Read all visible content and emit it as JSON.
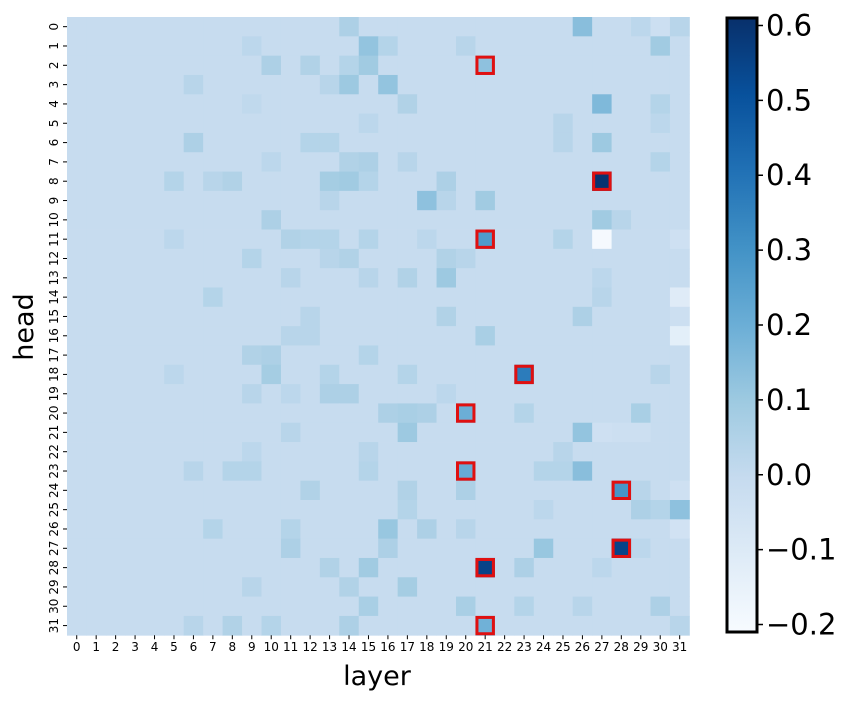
{
  "chart_data": {
    "type": "heatmap",
    "xlabel": "layer",
    "ylabel": "head",
    "x_categories": [
      "0",
      "1",
      "2",
      "3",
      "4",
      "5",
      "6",
      "7",
      "8",
      "9",
      "10",
      "11",
      "12",
      "13",
      "14",
      "15",
      "16",
      "17",
      "18",
      "19",
      "20",
      "21",
      "22",
      "23",
      "24",
      "25",
      "26",
      "27",
      "28",
      "29",
      "30",
      "31"
    ],
    "y_categories": [
      "0",
      "1",
      "2",
      "3",
      "4",
      "5",
      "6",
      "7",
      "8",
      "9",
      "10",
      "11",
      "12",
      "13",
      "14",
      "15",
      "16",
      "17",
      "18",
      "19",
      "20",
      "21",
      "22",
      "23",
      "24",
      "25",
      "26",
      "27",
      "28",
      "29",
      "30",
      "31"
    ],
    "colormap": "Blues",
    "colorbar": {
      "range": [
        -0.21,
        0.61
      ],
      "ticks": [
        -0.2,
        -0.1,
        0.0,
        0.1,
        0.2,
        0.3,
        0.4,
        0.5,
        0.6
      ],
      "tick_labels": [
        "−0.2",
        "−0.1",
        "0.0",
        "0.1",
        "0.2",
        "0.3",
        "0.4",
        "0.5",
        "0.6"
      ]
    },
    "baseline_value": -0.01,
    "cells": [
      {
        "layer": 14,
        "head": 0,
        "value": 0.06
      },
      {
        "layer": 26,
        "head": 0,
        "value": 0.14
      },
      {
        "layer": 29,
        "head": 0,
        "value": 0.02
      },
      {
        "layer": 30,
        "head": 0,
        "value": -0.03
      },
      {
        "layer": 31,
        "head": 0,
        "value": 0.03
      },
      {
        "layer": 9,
        "head": 1,
        "value": 0.02
      },
      {
        "layer": 15,
        "head": 1,
        "value": 0.12
      },
      {
        "layer": 16,
        "head": 1,
        "value": 0.04
      },
      {
        "layer": 20,
        "head": 1,
        "value": 0.03
      },
      {
        "layer": 30,
        "head": 1,
        "value": 0.09
      },
      {
        "layer": 10,
        "head": 2,
        "value": 0.06
      },
      {
        "layer": 12,
        "head": 2,
        "value": 0.05
      },
      {
        "layer": 14,
        "head": 2,
        "value": 0.04
      },
      {
        "layer": 15,
        "head": 2,
        "value": 0.09
      },
      {
        "layer": 21,
        "head": 2,
        "value": 0.13
      },
      {
        "layer": 6,
        "head": 3,
        "value": 0.03
      },
      {
        "layer": 14,
        "head": 3,
        "value": 0.1
      },
      {
        "layer": 16,
        "head": 3,
        "value": 0.12
      },
      {
        "layer": 13,
        "head": 3,
        "value": 0.03
      },
      {
        "layer": 9,
        "head": 4,
        "value": 0.01
      },
      {
        "layer": 17,
        "head": 4,
        "value": 0.05
      },
      {
        "layer": 27,
        "head": 4,
        "value": 0.16
      },
      {
        "layer": 30,
        "head": 4,
        "value": 0.04
      },
      {
        "layer": 15,
        "head": 5,
        "value": 0.02
      },
      {
        "layer": 25,
        "head": 5,
        "value": 0.03
      },
      {
        "layer": 30,
        "head": 5,
        "value": 0.02
      },
      {
        "layer": 6,
        "head": 6,
        "value": 0.06
      },
      {
        "layer": 12,
        "head": 6,
        "value": 0.04
      },
      {
        "layer": 13,
        "head": 6,
        "value": 0.04
      },
      {
        "layer": 25,
        "head": 6,
        "value": 0.03
      },
      {
        "layer": 27,
        "head": 6,
        "value": 0.1
      },
      {
        "layer": 10,
        "head": 7,
        "value": 0.02
      },
      {
        "layer": 14,
        "head": 7,
        "value": 0.05
      },
      {
        "layer": 15,
        "head": 7,
        "value": 0.06
      },
      {
        "layer": 17,
        "head": 7,
        "value": 0.03
      },
      {
        "layer": 30,
        "head": 7,
        "value": 0.04
      },
      {
        "layer": 5,
        "head": 8,
        "value": 0.04
      },
      {
        "layer": 7,
        "head": 8,
        "value": 0.03
      },
      {
        "layer": 8,
        "head": 8,
        "value": 0.05
      },
      {
        "layer": 13,
        "head": 8,
        "value": 0.08
      },
      {
        "layer": 14,
        "head": 8,
        "value": 0.09
      },
      {
        "layer": 15,
        "head": 8,
        "value": 0.04
      },
      {
        "layer": 19,
        "head": 8,
        "value": 0.06
      },
      {
        "layer": 27,
        "head": 8,
        "value": 0.6
      },
      {
        "layer": 13,
        "head": 9,
        "value": 0.03
      },
      {
        "layer": 18,
        "head": 9,
        "value": 0.13
      },
      {
        "layer": 21,
        "head": 9,
        "value": 0.09
      },
      {
        "layer": 19,
        "head": 9,
        "value": 0.03
      },
      {
        "layer": 10,
        "head": 10,
        "value": 0.06
      },
      {
        "layer": 27,
        "head": 10,
        "value": 0.09
      },
      {
        "layer": 28,
        "head": 10,
        "value": 0.03
      },
      {
        "layer": 5,
        "head": 11,
        "value": 0.02
      },
      {
        "layer": 11,
        "head": 11,
        "value": 0.05
      },
      {
        "layer": 12,
        "head": 11,
        "value": 0.04
      },
      {
        "layer": 13,
        "head": 11,
        "value": 0.04
      },
      {
        "layer": 15,
        "head": 11,
        "value": 0.04
      },
      {
        "layer": 18,
        "head": 11,
        "value": 0.02
      },
      {
        "layer": 21,
        "head": 11,
        "value": 0.27
      },
      {
        "layer": 25,
        "head": 11,
        "value": 0.04
      },
      {
        "layer": 27,
        "head": 11,
        "value": -0.2
      },
      {
        "layer": 31,
        "head": 11,
        "value": -0.04
      },
      {
        "layer": 9,
        "head": 12,
        "value": 0.04
      },
      {
        "layer": 13,
        "head": 12,
        "value": 0.03
      },
      {
        "layer": 14,
        "head": 12,
        "value": 0.05
      },
      {
        "layer": 19,
        "head": 12,
        "value": 0.05
      },
      {
        "layer": 20,
        "head": 12,
        "value": 0.03
      },
      {
        "layer": 11,
        "head": 13,
        "value": 0.03
      },
      {
        "layer": 15,
        "head": 13,
        "value": 0.03
      },
      {
        "layer": 17,
        "head": 13,
        "value": 0.05
      },
      {
        "layer": 19,
        "head": 13,
        "value": 0.1
      },
      {
        "layer": 27,
        "head": 13,
        "value": 0.02
      },
      {
        "layer": 7,
        "head": 14,
        "value": 0.04
      },
      {
        "layer": 27,
        "head": 14,
        "value": 0.03
      },
      {
        "layer": 31,
        "head": 14,
        "value": -0.11
      },
      {
        "layer": 12,
        "head": 15,
        "value": 0.03
      },
      {
        "layer": 19,
        "head": 15,
        "value": 0.05
      },
      {
        "layer": 26,
        "head": 15,
        "value": 0.06
      },
      {
        "layer": 31,
        "head": 15,
        "value": -0.03
      },
      {
        "layer": 11,
        "head": 16,
        "value": 0.03
      },
      {
        "layer": 12,
        "head": 16,
        "value": 0.03
      },
      {
        "layer": 21,
        "head": 16,
        "value": 0.07
      },
      {
        "layer": 31,
        "head": 16,
        "value": -0.13
      },
      {
        "layer": 9,
        "head": 17,
        "value": 0.05
      },
      {
        "layer": 10,
        "head": 17,
        "value": 0.06
      },
      {
        "layer": 15,
        "head": 17,
        "value": 0.04
      },
      {
        "layer": 5,
        "head": 18,
        "value": 0.02
      },
      {
        "layer": 10,
        "head": 18,
        "value": 0.08
      },
      {
        "layer": 13,
        "head": 18,
        "value": 0.04
      },
      {
        "layer": 17,
        "head": 18,
        "value": 0.04
      },
      {
        "layer": 23,
        "head": 18,
        "value": 0.37
      },
      {
        "layer": 30,
        "head": 18,
        "value": 0.03
      },
      {
        "layer": 9,
        "head": 19,
        "value": 0.03
      },
      {
        "layer": 11,
        "head": 19,
        "value": 0.02
      },
      {
        "layer": 13,
        "head": 19,
        "value": 0.06
      },
      {
        "layer": 14,
        "head": 19,
        "value": 0.06
      },
      {
        "layer": 19,
        "head": 19,
        "value": 0.02
      },
      {
        "layer": 16,
        "head": 20,
        "value": 0.06
      },
      {
        "layer": 17,
        "head": 20,
        "value": 0.07
      },
      {
        "layer": 18,
        "head": 20,
        "value": 0.06
      },
      {
        "layer": 20,
        "head": 20,
        "value": 0.2
      },
      {
        "layer": 23,
        "head": 20,
        "value": 0.04
      },
      {
        "layer": 29,
        "head": 20,
        "value": 0.07
      },
      {
        "layer": 11,
        "head": 21,
        "value": 0.03
      },
      {
        "layer": 17,
        "head": 21,
        "value": 0.1
      },
      {
        "layer": 26,
        "head": 21,
        "value": 0.12
      },
      {
        "layer": 27,
        "head": 21,
        "value": -0.04
      },
      {
        "layer": 28,
        "head": 21,
        "value": -0.03
      },
      {
        "layer": 29,
        "head": 21,
        "value": -0.03
      },
      {
        "layer": 9,
        "head": 22,
        "value": 0.02
      },
      {
        "layer": 15,
        "head": 22,
        "value": 0.03
      },
      {
        "layer": 25,
        "head": 22,
        "value": 0.03
      },
      {
        "layer": 6,
        "head": 23,
        "value": 0.03
      },
      {
        "layer": 8,
        "head": 23,
        "value": 0.04
      },
      {
        "layer": 9,
        "head": 23,
        "value": 0.04
      },
      {
        "layer": 15,
        "head": 23,
        "value": 0.04
      },
      {
        "layer": 20,
        "head": 23,
        "value": 0.21
      },
      {
        "layer": 24,
        "head": 23,
        "value": 0.04
      },
      {
        "layer": 25,
        "head": 23,
        "value": 0.04
      },
      {
        "layer": 26,
        "head": 23,
        "value": 0.14
      },
      {
        "layer": 12,
        "head": 24,
        "value": 0.05
      },
      {
        "layer": 17,
        "head": 24,
        "value": 0.05
      },
      {
        "layer": 20,
        "head": 24,
        "value": 0.06
      },
      {
        "layer": 28,
        "head": 24,
        "value": 0.29
      },
      {
        "layer": 29,
        "head": 24,
        "value": 0.03
      },
      {
        "layer": 31,
        "head": 24,
        "value": -0.04
      },
      {
        "layer": 17,
        "head": 25,
        "value": 0.04
      },
      {
        "layer": 24,
        "head": 25,
        "value": 0.02
      },
      {
        "layer": 29,
        "head": 25,
        "value": 0.06
      },
      {
        "layer": 30,
        "head": 25,
        "value": 0.04
      },
      {
        "layer": 31,
        "head": 25,
        "value": 0.13
      },
      {
        "layer": 7,
        "head": 26,
        "value": 0.04
      },
      {
        "layer": 11,
        "head": 26,
        "value": 0.04
      },
      {
        "layer": 16,
        "head": 26,
        "value": 0.11
      },
      {
        "layer": 18,
        "head": 26,
        "value": 0.06
      },
      {
        "layer": 20,
        "head": 26,
        "value": 0.03
      },
      {
        "layer": 31,
        "head": 26,
        "value": -0.05
      },
      {
        "layer": 11,
        "head": 27,
        "value": 0.06
      },
      {
        "layer": 16,
        "head": 27,
        "value": 0.06
      },
      {
        "layer": 24,
        "head": 27,
        "value": 0.11
      },
      {
        "layer": 28,
        "head": 27,
        "value": 0.55
      },
      {
        "layer": 29,
        "head": 27,
        "value": 0.02
      },
      {
        "layer": 13,
        "head": 28,
        "value": 0.05
      },
      {
        "layer": 15,
        "head": 28,
        "value": 0.09
      },
      {
        "layer": 21,
        "head": 28,
        "value": 0.55
      },
      {
        "layer": 23,
        "head": 28,
        "value": 0.06
      },
      {
        "layer": 27,
        "head": 28,
        "value": 0.02
      },
      {
        "layer": 9,
        "head": 29,
        "value": 0.03
      },
      {
        "layer": 14,
        "head": 29,
        "value": 0.05
      },
      {
        "layer": 17,
        "head": 29,
        "value": 0.08
      },
      {
        "layer": 15,
        "head": 30,
        "value": 0.07
      },
      {
        "layer": 20,
        "head": 30,
        "value": 0.07
      },
      {
        "layer": 23,
        "head": 30,
        "value": 0.04
      },
      {
        "layer": 26,
        "head": 30,
        "value": 0.03
      },
      {
        "layer": 30,
        "head": 30,
        "value": 0.06
      },
      {
        "layer": 6,
        "head": 31,
        "value": 0.03
      },
      {
        "layer": 8,
        "head": 31,
        "value": 0.05
      },
      {
        "layer": 10,
        "head": 31,
        "value": 0.04
      },
      {
        "layer": 14,
        "head": 31,
        "value": 0.06
      },
      {
        "layer": 21,
        "head": 31,
        "value": 0.19
      },
      {
        "layer": 31,
        "head": 31,
        "value": 0.03
      }
    ],
    "highlighted_cells": [
      {
        "layer": 21,
        "head": 2
      },
      {
        "layer": 27,
        "head": 8
      },
      {
        "layer": 21,
        "head": 11
      },
      {
        "layer": 23,
        "head": 18
      },
      {
        "layer": 20,
        "head": 20
      },
      {
        "layer": 20,
        "head": 23
      },
      {
        "layer": 28,
        "head": 24
      },
      {
        "layer": 28,
        "head": 27
      },
      {
        "layer": 21,
        "head": 28
      },
      {
        "layer": 21,
        "head": 31
      }
    ],
    "highlight_color": "#e01010"
  }
}
